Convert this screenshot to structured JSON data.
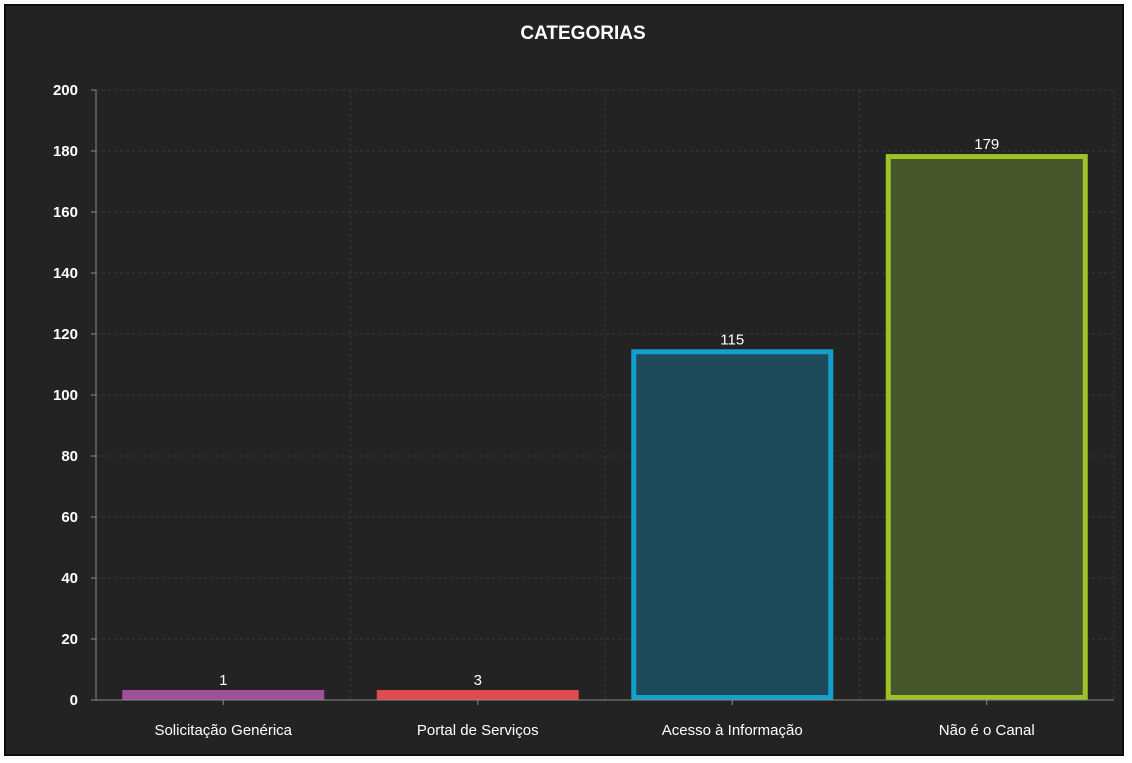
{
  "chart_data": {
    "type": "bar",
    "title": "CATEGORIAS",
    "xlabel": "",
    "ylabel": "",
    "categories": [
      "Solicitação Genérica",
      "Portal de Serviços",
      "Acesso à Informação",
      "Não é o Canal"
    ],
    "values": [
      1,
      3,
      115,
      179
    ],
    "data_labels": [
      "1",
      "3",
      "115",
      "179"
    ],
    "yticks": [
      "0",
      "20",
      "40",
      "60",
      "80",
      "100",
      "120",
      "140",
      "160",
      "180",
      "200"
    ],
    "ylim": [
      0,
      200
    ],
    "grid": true,
    "legend": "none",
    "colors": {
      "background": "#232323",
      "bar_strokes": [
        "#a0509a",
        "#e14b4b",
        "#14a0cc",
        "#9ec228"
      ],
      "bar_fills": [
        "#5e3a5c",
        "#5a3030",
        "#1e4a5c",
        "#47552a"
      ]
    }
  }
}
